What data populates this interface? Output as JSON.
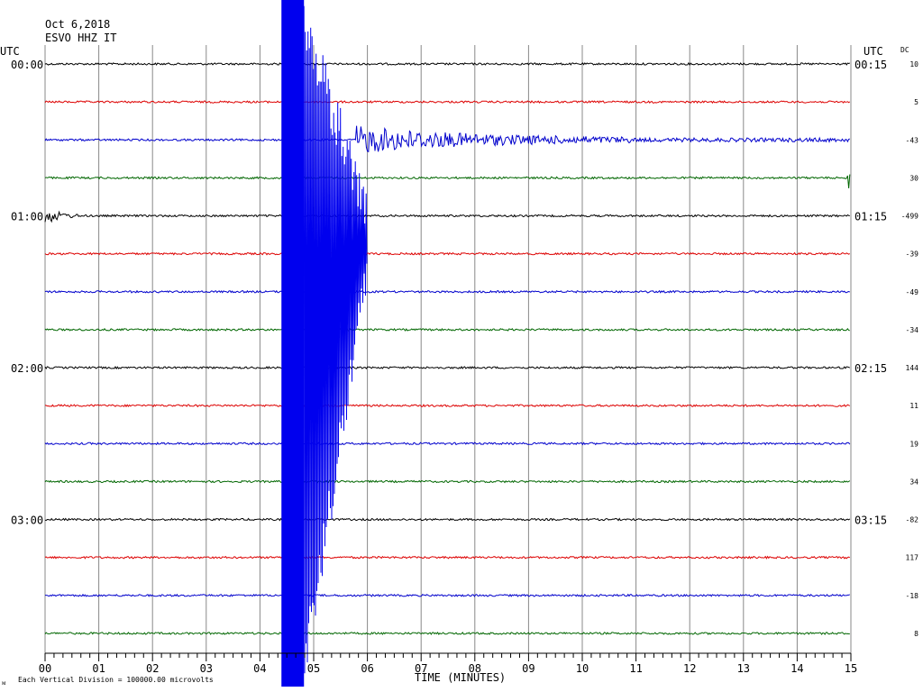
{
  "header": {
    "date": "Oct 6,2018",
    "station": "ESVO HHZ IT",
    "utc_left": "UTC",
    "utc_right": "UTC",
    "dc_label": "DC"
  },
  "footer": {
    "scale_note": "Each Vertical Division = 100000.00 microvolts",
    "corner_mark": "ᴍ"
  },
  "chart_data": {
    "type": "line",
    "title": "",
    "xlabel": "TIME (MINUTES)",
    "ylabel": "",
    "xlim": [
      0,
      15
    ],
    "x_ticks": [
      "00",
      "01",
      "02",
      "03",
      "04",
      "05",
      "06",
      "07",
      "08",
      "09",
      "10",
      "11",
      "12",
      "13",
      "14",
      "15"
    ],
    "grid": true,
    "trace_colors": [
      "#000000",
      "#dd0000",
      "#0000cc",
      "#006600"
    ],
    "left_time_labels": [
      {
        "row": 0,
        "text": "00:00"
      },
      {
        "row": 4,
        "text": "01:00"
      },
      {
        "row": 8,
        "text": "02:00"
      },
      {
        "row": 12,
        "text": "03:00"
      }
    ],
    "right_time_labels": [
      {
        "row": 0,
        "text": "00:15"
      },
      {
        "row": 4,
        "text": "01:15"
      },
      {
        "row": 8,
        "text": "02:15"
      },
      {
        "row": 12,
        "text": "03:15"
      }
    ],
    "dc_offsets": [
      "10",
      "5",
      "-43",
      "30",
      "-499",
      "-39",
      "-49",
      "-34",
      "144",
      "11",
      "19",
      "34",
      "-82",
      "117",
      "-18",
      "8"
    ],
    "series": [
      {
        "row": 0,
        "values": []
      },
      {
        "row": 1,
        "values": []
      },
      {
        "row": 2,
        "values": []
      },
      {
        "row": 3,
        "values": []
      },
      {
        "row": 4,
        "values": []
      },
      {
        "row": 5,
        "values": []
      },
      {
        "row": 6,
        "values": []
      },
      {
        "row": 7,
        "values": []
      },
      {
        "row": 8,
        "values": []
      },
      {
        "row": 9,
        "values": []
      },
      {
        "row": 10,
        "values": []
      },
      {
        "row": 11,
        "values": []
      },
      {
        "row": 12,
        "values": []
      },
      {
        "row": 13,
        "values": []
      },
      {
        "row": 14,
        "values": []
      },
      {
        "row": 15,
        "values": []
      }
    ],
    "earthquake": {
      "onset_minute": 4.4,
      "peak_minute": 4.6
    }
  }
}
